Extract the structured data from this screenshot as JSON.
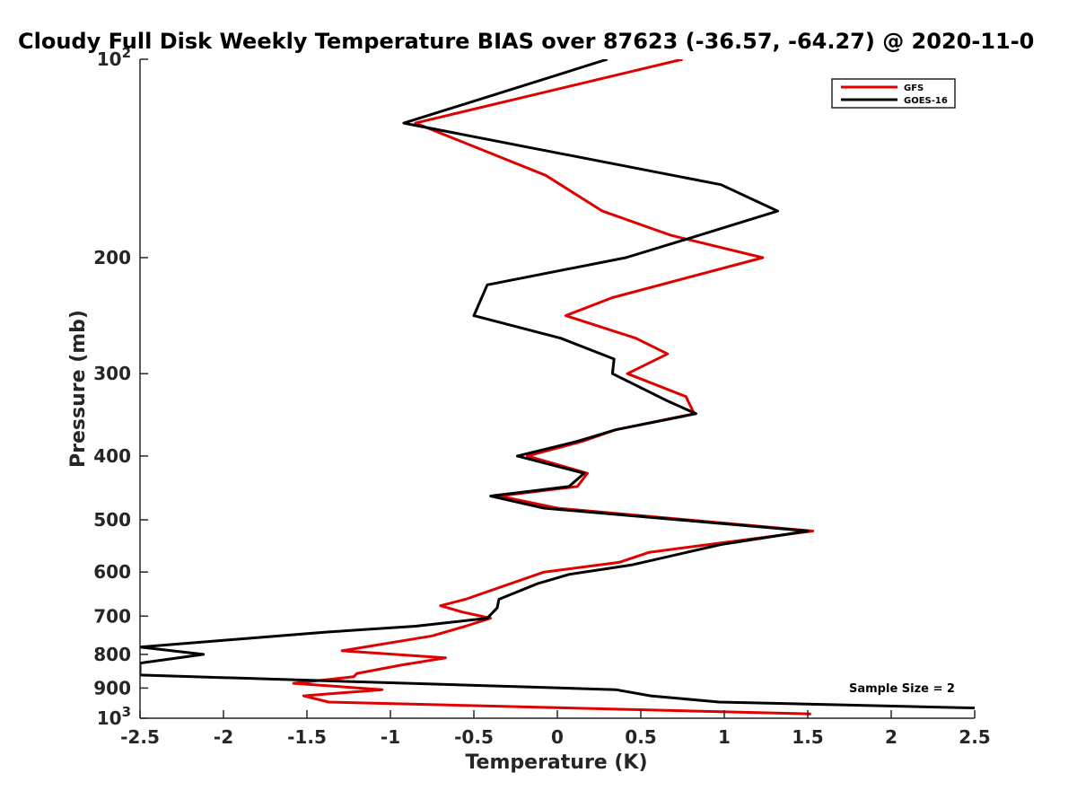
{
  "chart_data": {
    "type": "line",
    "title": "Cloudy Full Disk Weekly Temperature BIAS over 87623 (-36.57, -64.27) @ 2020-11-0",
    "xlabel": "Temperature (K)",
    "ylabel": "Pressure (mb)",
    "xlim": [
      -2.5,
      2.5
    ],
    "ylim": [
      100,
      1000
    ],
    "yscale": "log",
    "y_reversed": true,
    "x_ticks": [
      "-2.5",
      "-2",
      "-1.5",
      "-1",
      "-0.5",
      "0",
      "0.5",
      "1",
      "1.5",
      "2",
      "2.5"
    ],
    "y_ticks": [
      {
        "value": 100,
        "base": "10",
        "exp": "2"
      },
      {
        "value": 200,
        "label": "200"
      },
      {
        "value": 300,
        "label": "300"
      },
      {
        "value": 400,
        "label": "400"
      },
      {
        "value": 500,
        "label": "500"
      },
      {
        "value": 600,
        "label": "600"
      },
      {
        "value": 700,
        "label": "700"
      },
      {
        "value": 800,
        "label": "800"
      },
      {
        "value": 900,
        "label": "900"
      },
      {
        "value": 1000,
        "base": "10",
        "exp": "3"
      }
    ],
    "grid": false,
    "legend_position": "top-right",
    "annotation": "Sample Size = 2",
    "series": [
      {
        "name": "GFS",
        "color": "#e00000",
        "points": [
          [
            0.75,
            100
          ],
          [
            -0.85,
            125
          ],
          [
            -0.07,
            150
          ],
          [
            0.27,
            170
          ],
          [
            0.68,
            185
          ],
          [
            1.23,
            200
          ],
          [
            0.33,
            230
          ],
          [
            0.05,
            245
          ],
          [
            0.47,
            265
          ],
          [
            0.66,
            280
          ],
          [
            0.42,
            300
          ],
          [
            0.77,
            325
          ],
          [
            0.82,
            345
          ],
          [
            0.35,
            365
          ],
          [
            0.15,
            380
          ],
          [
            -0.18,
            400
          ],
          [
            0.18,
            425
          ],
          [
            0.12,
            445
          ],
          [
            -0.35,
            460
          ],
          [
            0.0,
            480
          ],
          [
            1.53,
            520
          ],
          [
            0.55,
            560
          ],
          [
            0.37,
            580
          ],
          [
            -0.08,
            600
          ],
          [
            -0.55,
            660
          ],
          [
            -0.7,
            675
          ],
          [
            -0.57,
            690
          ],
          [
            -0.4,
            705
          ],
          [
            -0.55,
            725
          ],
          [
            -0.75,
            750
          ],
          [
            -1.29,
            790
          ],
          [
            -0.67,
            810
          ],
          [
            -0.93,
            830
          ],
          [
            -1.2,
            855
          ],
          [
            -1.22,
            865
          ],
          [
            -1.58,
            885
          ],
          [
            -1.05,
            905
          ],
          [
            -1.52,
            925
          ],
          [
            -1.37,
            945
          ],
          [
            1.52,
            985
          ]
        ]
      },
      {
        "name": "GOES-16",
        "color": "#000000",
        "points": [
          [
            0.3,
            100
          ],
          [
            -0.92,
            125
          ],
          [
            0.98,
            155
          ],
          [
            1.32,
            170
          ],
          [
            0.7,
            190
          ],
          [
            0.41,
            200
          ],
          [
            -0.42,
            220
          ],
          [
            -0.5,
            245
          ],
          [
            0.02,
            265
          ],
          [
            0.34,
            285
          ],
          [
            0.33,
            300
          ],
          [
            0.66,
            330
          ],
          [
            0.83,
            345
          ],
          [
            0.35,
            365
          ],
          [
            0.12,
            380
          ],
          [
            -0.24,
            400
          ],
          [
            0.16,
            425
          ],
          [
            0.07,
            445
          ],
          [
            -0.4,
            460
          ],
          [
            -0.08,
            480
          ],
          [
            1.5,
            520
          ],
          [
            0.98,
            545
          ],
          [
            0.45,
            585
          ],
          [
            0.07,
            605
          ],
          [
            -0.12,
            625
          ],
          [
            -0.35,
            660
          ],
          [
            -0.36,
            680
          ],
          [
            -0.42,
            705
          ],
          [
            -0.85,
            725
          ],
          [
            -1.38,
            740
          ],
          [
            -1.95,
            760
          ],
          [
            -2.5,
            780
          ],
          [
            -2.12,
            800
          ],
          [
            -2.5,
            825
          ],
          [
            -2.5,
            860
          ],
          [
            0.35,
            905
          ],
          [
            0.56,
            925
          ],
          [
            0.97,
            945
          ],
          [
            2.5,
            965
          ]
        ]
      }
    ]
  }
}
